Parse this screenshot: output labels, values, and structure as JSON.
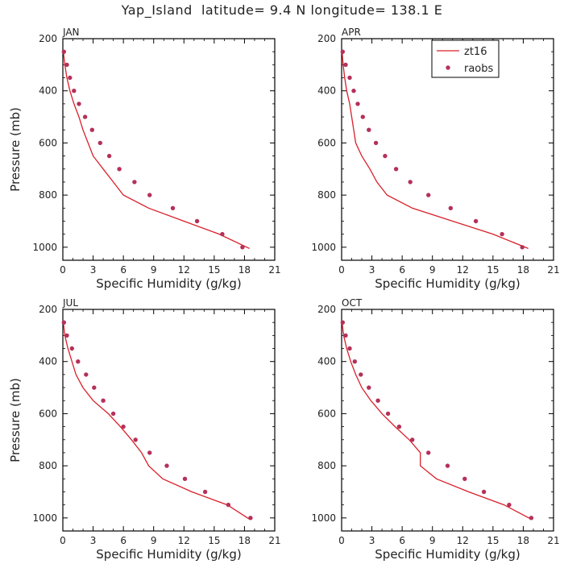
{
  "title": "Yap_Island  latitude= 9.4 N longitude= 138.1 E",
  "colors": {
    "model_line": "#d9202a",
    "obs_marker": "#b5305a",
    "axis": "#000000",
    "text": "#222222"
  },
  "legend": [
    {
      "label": "zt16",
      "kind": "line"
    },
    {
      "label": "raobs",
      "kind": "marker"
    }
  ],
  "chart_data": [
    {
      "type": "line",
      "panel": "JAN",
      "xlabel": "Specific Humidity (g/kg)",
      "ylabel": "Pressure (mb)",
      "xlim": [
        0,
        21
      ],
      "ylim": [
        200,
        1050
      ],
      "y_inverted": true,
      "xticks": [
        0,
        3,
        6,
        9,
        12,
        15,
        18,
        21
      ],
      "yticks": [
        200,
        400,
        600,
        800,
        1000
      ],
      "grid": false,
      "series": [
        {
          "name": "zt16",
          "style": "line",
          "points": [
            [
              0.05,
              250
            ],
            [
              0.2,
              300
            ],
            [
              0.4,
              350
            ],
            [
              0.7,
              400
            ],
            [
              1.1,
              450
            ],
            [
              1.6,
              500
            ],
            [
              2.0,
              550
            ],
            [
              2.5,
              600
            ],
            [
              3.0,
              650
            ],
            [
              4.0,
              700
            ],
            [
              5.0,
              750
            ],
            [
              6.0,
              800
            ],
            [
              8.5,
              850
            ],
            [
              12.0,
              900
            ],
            [
              15.5,
              950
            ],
            [
              18.5,
              1005
            ]
          ]
        },
        {
          "name": "raobs",
          "style": "marker",
          "points": [
            [
              0.1,
              250
            ],
            [
              0.4,
              300
            ],
            [
              0.7,
              350
            ],
            [
              1.1,
              400
            ],
            [
              1.6,
              450
            ],
            [
              2.2,
              500
            ],
            [
              2.9,
              550
            ],
            [
              3.7,
              600
            ],
            [
              4.6,
              650
            ],
            [
              5.6,
              700
            ],
            [
              7.1,
              750
            ],
            [
              8.6,
              800
            ],
            [
              10.9,
              850
            ],
            [
              13.3,
              900
            ],
            [
              15.8,
              950
            ],
            [
              17.8,
              1000
            ]
          ]
        }
      ]
    },
    {
      "type": "line",
      "panel": "APR",
      "xlabel": "Specific Humidity (g/kg)",
      "ylabel": "",
      "xlim": [
        0,
        21
      ],
      "ylim": [
        200,
        1050
      ],
      "y_inverted": true,
      "xticks": [
        0,
        3,
        6,
        9,
        12,
        15,
        18,
        21
      ],
      "yticks": [
        200,
        400,
        600,
        800,
        1000
      ],
      "grid": false,
      "legend_position": "top-right",
      "series": [
        {
          "name": "zt16",
          "style": "line",
          "points": [
            [
              0.05,
              250
            ],
            [
              0.15,
              300
            ],
            [
              0.3,
              350
            ],
            [
              0.5,
              400
            ],
            [
              0.8,
              450
            ],
            [
              1.0,
              500
            ],
            [
              1.2,
              550
            ],
            [
              1.4,
              600
            ],
            [
              2.0,
              650
            ],
            [
              2.8,
              700
            ],
            [
              3.5,
              750
            ],
            [
              4.5,
              800
            ],
            [
              7.0,
              850
            ],
            [
              11.0,
              900
            ],
            [
              15.0,
              950
            ],
            [
              18.5,
              1005
            ]
          ]
        },
        {
          "name": "raobs",
          "style": "marker",
          "points": [
            [
              0.1,
              250
            ],
            [
              0.4,
              300
            ],
            [
              0.8,
              350
            ],
            [
              1.2,
              400
            ],
            [
              1.6,
              450
            ],
            [
              2.1,
              500
            ],
            [
              2.7,
              550
            ],
            [
              3.4,
              600
            ],
            [
              4.3,
              650
            ],
            [
              5.4,
              700
            ],
            [
              6.8,
              750
            ],
            [
              8.6,
              800
            ],
            [
              10.8,
              850
            ],
            [
              13.3,
              900
            ],
            [
              15.9,
              950
            ],
            [
              17.9,
              1000
            ]
          ]
        }
      ]
    },
    {
      "type": "line",
      "panel": "JUL",
      "xlabel": "Specific Humidity (g/kg)",
      "ylabel": "Pressure (mb)",
      "xlim": [
        0,
        21
      ],
      "ylim": [
        200,
        1050
      ],
      "y_inverted": true,
      "xticks": [
        0,
        3,
        6,
        9,
        12,
        15,
        18,
        21
      ],
      "yticks": [
        200,
        400,
        600,
        800,
        1000
      ],
      "grid": false,
      "series": [
        {
          "name": "zt16",
          "style": "line",
          "points": [
            [
              0.05,
              250
            ],
            [
              0.2,
              300
            ],
            [
              0.5,
              350
            ],
            [
              0.9,
              400
            ],
            [
              1.3,
              450
            ],
            [
              2.0,
              500
            ],
            [
              3.0,
              550
            ],
            [
              4.5,
              600
            ],
            [
              5.7,
              650
            ],
            [
              6.8,
              700
            ],
            [
              7.8,
              750
            ],
            [
              8.5,
              800
            ],
            [
              9.9,
              850
            ],
            [
              12.8,
              900
            ],
            [
              16.3,
              950
            ],
            [
              18.5,
              1005
            ]
          ]
        },
        {
          "name": "raobs",
          "style": "marker",
          "points": [
            [
              0.1,
              250
            ],
            [
              0.4,
              300
            ],
            [
              0.9,
              350
            ],
            [
              1.5,
              400
            ],
            [
              2.3,
              450
            ],
            [
              3.1,
              500
            ],
            [
              4.0,
              550
            ],
            [
              5.0,
              600
            ],
            [
              6.0,
              650
            ],
            [
              7.2,
              700
            ],
            [
              8.6,
              750
            ],
            [
              10.3,
              800
            ],
            [
              12.1,
              850
            ],
            [
              14.1,
              900
            ],
            [
              16.4,
              950
            ],
            [
              18.6,
              1000
            ]
          ]
        }
      ]
    },
    {
      "type": "line",
      "panel": "OCT",
      "xlabel": "Specific Humidity (g/kg)",
      "ylabel": "",
      "xlim": [
        0,
        21
      ],
      "ylim": [
        200,
        1050
      ],
      "y_inverted": true,
      "xticks": [
        0,
        3,
        6,
        9,
        12,
        15,
        18,
        21
      ],
      "yticks": [
        200,
        400,
        600,
        800,
        1000
      ],
      "grid": false,
      "series": [
        {
          "name": "zt16",
          "style": "line",
          "points": [
            [
              0.05,
              250
            ],
            [
              0.2,
              300
            ],
            [
              0.5,
              350
            ],
            [
              0.9,
              400
            ],
            [
              1.4,
              450
            ],
            [
              2.0,
              500
            ],
            [
              2.9,
              550
            ],
            [
              4.0,
              600
            ],
            [
              5.3,
              650
            ],
            [
              6.7,
              700
            ],
            [
              7.8,
              750
            ],
            [
              7.8,
              800
            ],
            [
              9.4,
              850
            ],
            [
              12.6,
              900
            ],
            [
              16.1,
              950
            ],
            [
              18.8,
              1005
            ]
          ]
        },
        {
          "name": "raobs",
          "style": "marker",
          "points": [
            [
              0.1,
              250
            ],
            [
              0.4,
              300
            ],
            [
              0.8,
              350
            ],
            [
              1.3,
              400
            ],
            [
              1.9,
              450
            ],
            [
              2.7,
              500
            ],
            [
              3.6,
              550
            ],
            [
              4.6,
              600
            ],
            [
              5.7,
              650
            ],
            [
              7.0,
              700
            ],
            [
              8.6,
              750
            ],
            [
              10.5,
              800
            ],
            [
              12.2,
              850
            ],
            [
              14.1,
              900
            ],
            [
              16.6,
              950
            ],
            [
              18.8,
              1000
            ]
          ]
        }
      ]
    }
  ]
}
